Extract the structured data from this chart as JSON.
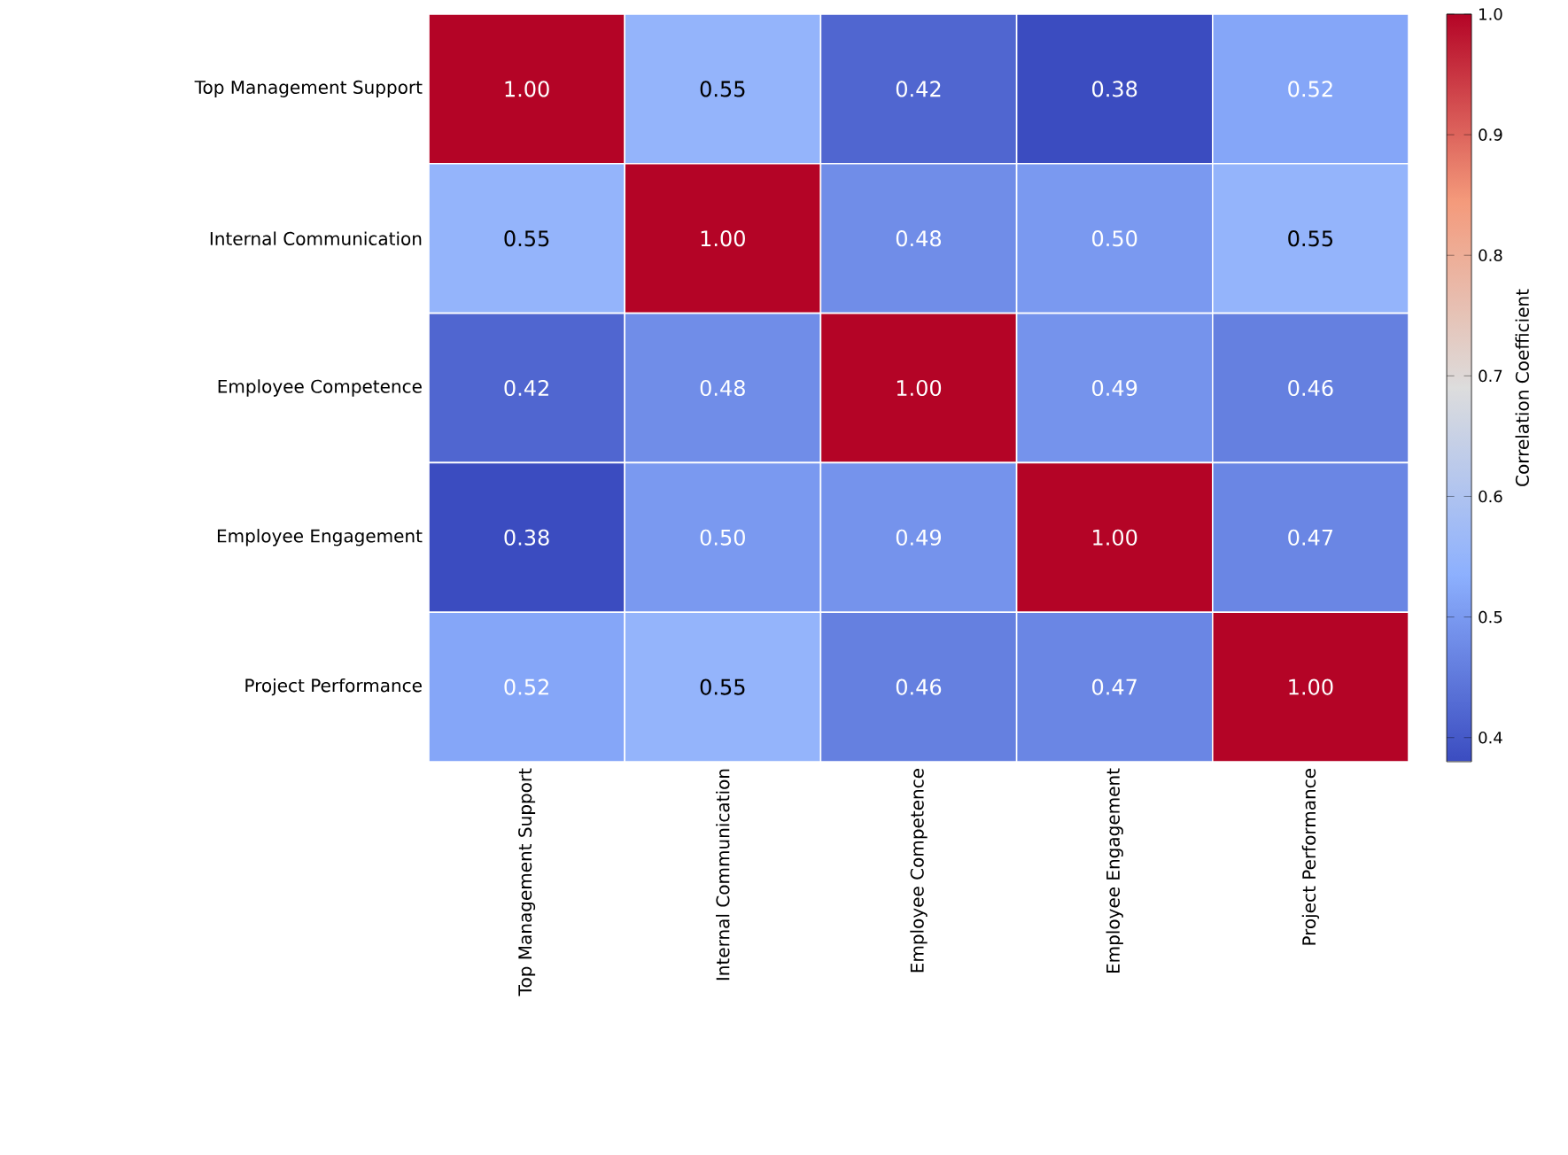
{
  "chart_data": {
    "type": "heatmap",
    "categories": [
      "Top Management Support",
      "Internal Communication",
      "Employee Competence",
      "Employee Engagement",
      "Project Performance"
    ],
    "y_categories": [
      "Top Management Support",
      "Internal Communication",
      "Employee Competence",
      "Employee Engagement",
      "Project Performance"
    ],
    "cells": [
      [
        1.0,
        0.55,
        0.42,
        0.38,
        0.52
      ],
      [
        0.55,
        1.0,
        0.48,
        0.5,
        0.55
      ],
      [
        0.42,
        0.48,
        1.0,
        0.49,
        0.46
      ],
      [
        0.38,
        0.5,
        0.49,
        1.0,
        0.47
      ],
      [
        0.52,
        0.55,
        0.46,
        0.47,
        1.0
      ]
    ],
    "cell_labels": [
      [
        "1.00",
        "0.55",
        "0.42",
        "0.38",
        "0.52"
      ],
      [
        "0.55",
        "1.00",
        "0.48",
        "0.50",
        "0.55"
      ],
      [
        "0.42",
        "0.48",
        "1.00",
        "0.49",
        "0.46"
      ],
      [
        "0.38",
        "0.50",
        "0.49",
        "1.00",
        "0.47"
      ],
      [
        "0.52",
        "0.55",
        "0.46",
        "0.47",
        "1.00"
      ]
    ],
    "clim": [
      0.38,
      1.0
    ],
    "cticks": [
      0.4,
      0.5,
      0.6,
      0.7,
      0.8,
      0.9,
      {
        "value": 1.0,
        "label": "1.0"
      }
    ],
    "clabel": "Correlation Coefficient"
  }
}
